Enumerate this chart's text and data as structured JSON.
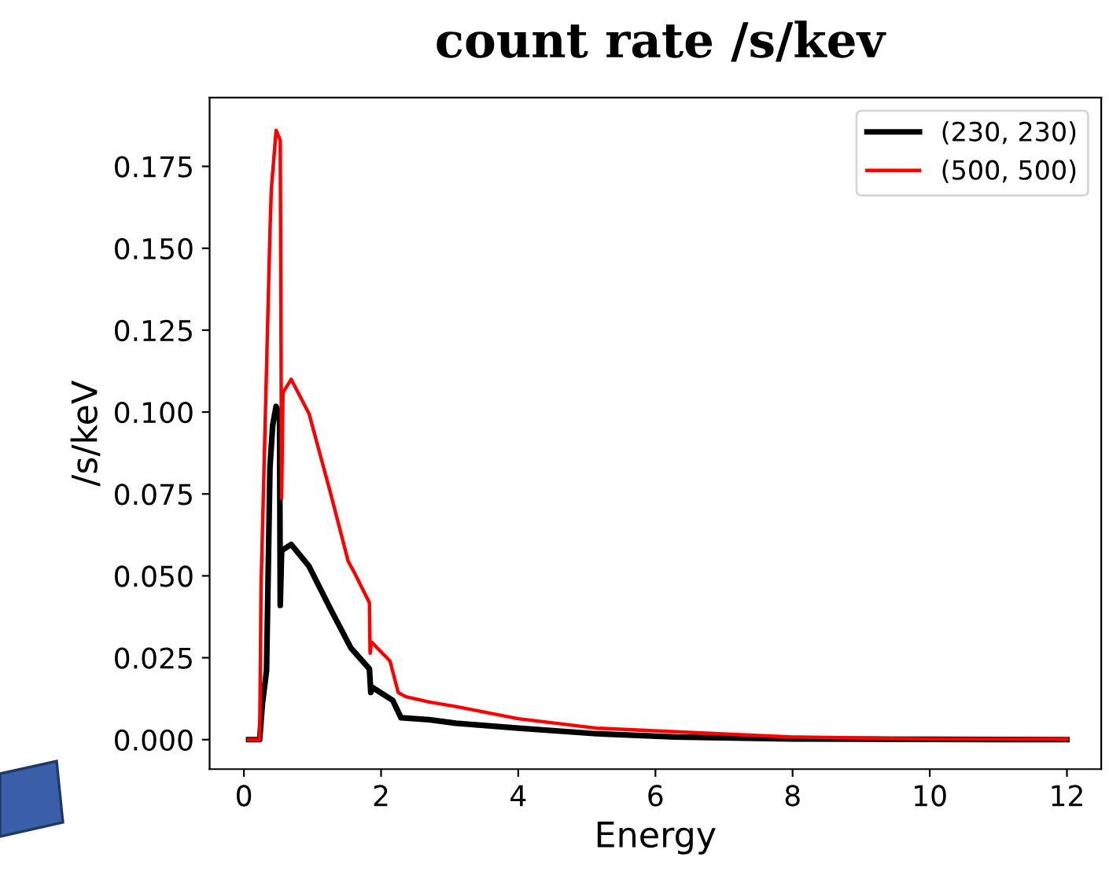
{
  "chart_data": {
    "type": "line",
    "title": "count rate /s/kev",
    "xlabel": "Energy",
    "ylabel": "/s/keV",
    "xlim": [
      -0.5,
      12.5
    ],
    "xticks": [
      0,
      2,
      4,
      6,
      8,
      10,
      12
    ],
    "ylim": [
      -0.009,
      0.196
    ],
    "yticks": [
      {
        "value": 0,
        "label": "0.000"
      },
      0.025,
      {
        "value": 0.05,
        "label": "0.050"
      },
      0.075,
      {
        "value": 0.1,
        "label": "0.100"
      },
      0.125,
      {
        "value": 0.15,
        "label": "0.150"
      },
      0.175
    ],
    "legend": "top right",
    "grid": false,
    "series": [
      {
        "name": "(230, 230)",
        "color": "#000000",
        "x": [
          0.07,
          0.23,
          0.27,
          0.33,
          0.38,
          0.42,
          0.47,
          0.52,
          0.53,
          0.55,
          0.69,
          0.95,
          1.26,
          1.56,
          1.83,
          1.85,
          1.87,
          2.17,
          2.29,
          2.7,
          3.09,
          4.0,
          5.14,
          6.29,
          8.0,
          12.0
        ],
        "values": [
          0,
          0,
          0.011,
          0.021,
          0.083,
          0.096,
          0.1017,
          0.099,
          0.041,
          0.0577,
          0.0596,
          0.0529,
          0.04,
          0.028,
          0.0216,
          0.0144,
          0.016,
          0.012,
          0.0067,
          0.0061,
          0.005,
          0.0035,
          0.0018,
          0.0008,
          0.0002,
          0
        ]
      },
      {
        "name": "(500, 500)",
        "color": "#ff0000",
        "x": [
          0.07,
          0.23,
          0.25,
          0.38,
          0.4,
          0.47,
          0.53,
          0.55,
          0.57,
          0.69,
          0.95,
          1.26,
          1.52,
          1.6,
          1.83,
          1.84,
          1.86,
          2.13,
          2.25,
          2.36,
          2.7,
          3.09,
          4.0,
          5.14,
          6.29,
          8.0,
          10.0,
          12.0
        ],
        "values": [
          0,
          0,
          0.0466,
          0.155,
          0.168,
          0.186,
          0.183,
          0.0737,
          0.106,
          0.11,
          0.0995,
          0.0755,
          0.0545,
          0.0514,
          0.0418,
          0.0264,
          0.0298,
          0.024,
          0.0144,
          0.0131,
          0.0115,
          0.0101,
          0.0064,
          0.0035,
          0.0024,
          0.0008,
          0.0002,
          0.0001
        ]
      }
    ]
  }
}
